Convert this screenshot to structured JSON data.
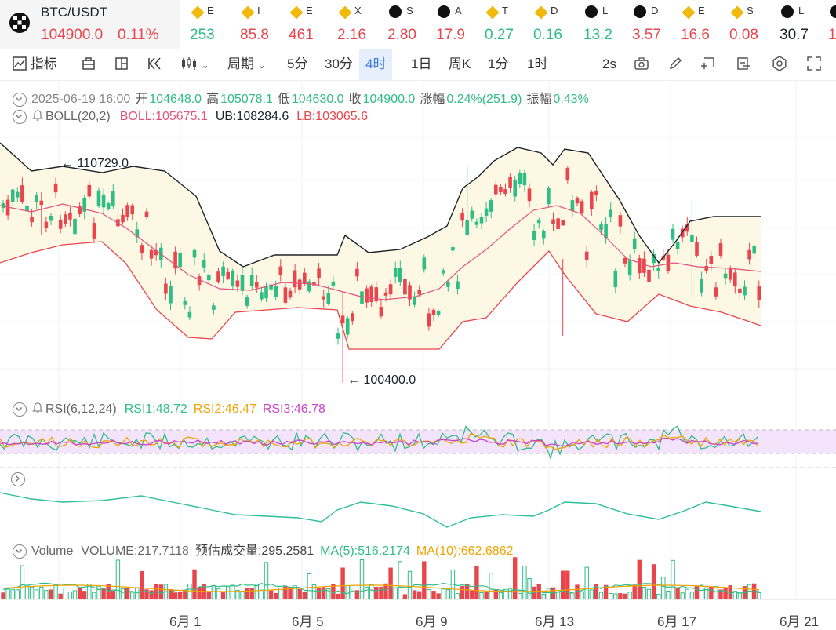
{
  "ticker": {
    "symbol": "BTC/USDT",
    "price": "104900.0",
    "change": "0.11%",
    "items": [
      {
        "top": "E",
        "val": "253",
        "color": "#2ebd85",
        "icon": "bnb-diamond-icon"
      },
      {
        "top": "I",
        "val": "85.8",
        "color": "#e8454d",
        "icon": "bnb-diamond-icon"
      },
      {
        "top": "E",
        "val": "461",
        "color": "#e8454d",
        "icon": "bnb-diamond-icon"
      },
      {
        "top": "X",
        "val": "2.16",
        "color": "#e8454d",
        "icon": "bnb-diamond-icon"
      },
      {
        "top": "S",
        "val": "2.80",
        "color": "#e8454d",
        "icon": "okx-icon"
      },
      {
        "top": "A",
        "val": "17.9",
        "color": "#e8454d",
        "icon": "okx-icon"
      },
      {
        "top": "T",
        "val": "0.27",
        "color": "#2ebd85",
        "icon": "bnb-diamond-icon"
      },
      {
        "top": "D",
        "val": "0.16",
        "color": "#2ebd85",
        "icon": "bnb-diamond-icon"
      },
      {
        "top": "L",
        "val": "13.2",
        "color": "#2ebd85",
        "icon": "okx-icon"
      },
      {
        "top": "D",
        "val": "3.57",
        "color": "#e8454d",
        "icon": "okx-icon"
      },
      {
        "top": "E",
        "val": "16.6",
        "color": "#e8454d",
        "icon": "bnb-diamond-icon"
      },
      {
        "top": "S",
        "val": "0.08",
        "color": "#e8454d",
        "icon": "bnb-diamond-icon"
      },
      {
        "top": "L",
        "val": "30.7",
        "color": "#1e2329",
        "icon": "okx-icon"
      },
      {
        "top": "",
        "val": "1",
        "color": "#e8454d",
        "icon": "okx-icon"
      }
    ]
  },
  "toolbar": {
    "indicator": "指标",
    "period": "周期",
    "intervals": [
      "5分",
      "30分",
      "4时",
      "1日",
      "周K",
      "1分",
      "1时"
    ],
    "active_interval": "4时",
    "refresh": "2s"
  },
  "ohlc": {
    "date": "2025-06-19 16:00",
    "open_label": "开",
    "open": "104648.0",
    "high_label": "高",
    "high": "105078.1",
    "low_label": "低",
    "low": "104630.0",
    "close_label": "收",
    "close": "104900.0",
    "chg_label": "涨幅",
    "chg": "0.24%(251.9)",
    "amp_label": "振幅",
    "amp": "0.43%"
  },
  "boll": {
    "title": "BOLL(20,2)",
    "mid": "BOLL:105675.1",
    "ub": "UB:108284.6",
    "lb": "LB:103065.6"
  },
  "annotations": {
    "high": "110729.0",
    "low": "100400.0"
  },
  "rsi": {
    "title": "RSI(6,12,24)",
    "rsi1": "RSI1:48.72",
    "rsi2": "RSI2:46.47",
    "rsi3": "RSI3:46.78"
  },
  "volume": {
    "title": "Volume",
    "vol": "VOLUME:217.7118",
    "est": "预估成交量:295.2581",
    "ma5": "MA(5):516.2174",
    "ma10": "MA(10):662.6862"
  },
  "x_axis": [
    "6月 1",
    "6月 5",
    "6月 9",
    "6月 13",
    "6月 17",
    "6月 21"
  ],
  "colors": {
    "up": "#2ebd85",
    "down": "#e8454d",
    "boll_mid": "#e2547f",
    "boll_ub": "#1e2329",
    "boll_lb": "#e8454d",
    "band_fill": "#fdf8e4",
    "rsi1": "#2ebd85",
    "rsi2": "#f0a300",
    "rsi3": "#c844c8",
    "rsi_fill": "#f3e4fb",
    "accent": "#3a7be0"
  },
  "chart_data": {
    "type": "candlestick",
    "price_range": [
      100400.0,
      110729.0
    ],
    "annotated_high": 110729.0,
    "annotated_low": 100400.0,
    "last_candle": {
      "open": 104648.0,
      "high": 105078.1,
      "low": 104630.0,
      "close": 104900.0
    },
    "bollinger_last": {
      "mid": 105675.1,
      "ub": 108284.6,
      "lb": 103065.6
    },
    "rsi_last": {
      "rsi1": 48.72,
      "rsi2": 46.47,
      "rsi3": 46.78
    },
    "volume_last": {
      "volume": 217.7118,
      "estimated": 295.2581,
      "ma5": 516.2174,
      "ma10": 662.6862
    },
    "x_ticks": [
      "6月 1",
      "6月 5",
      "6月 9",
      "6月 13",
      "6月 17",
      "6月 21"
    ]
  }
}
